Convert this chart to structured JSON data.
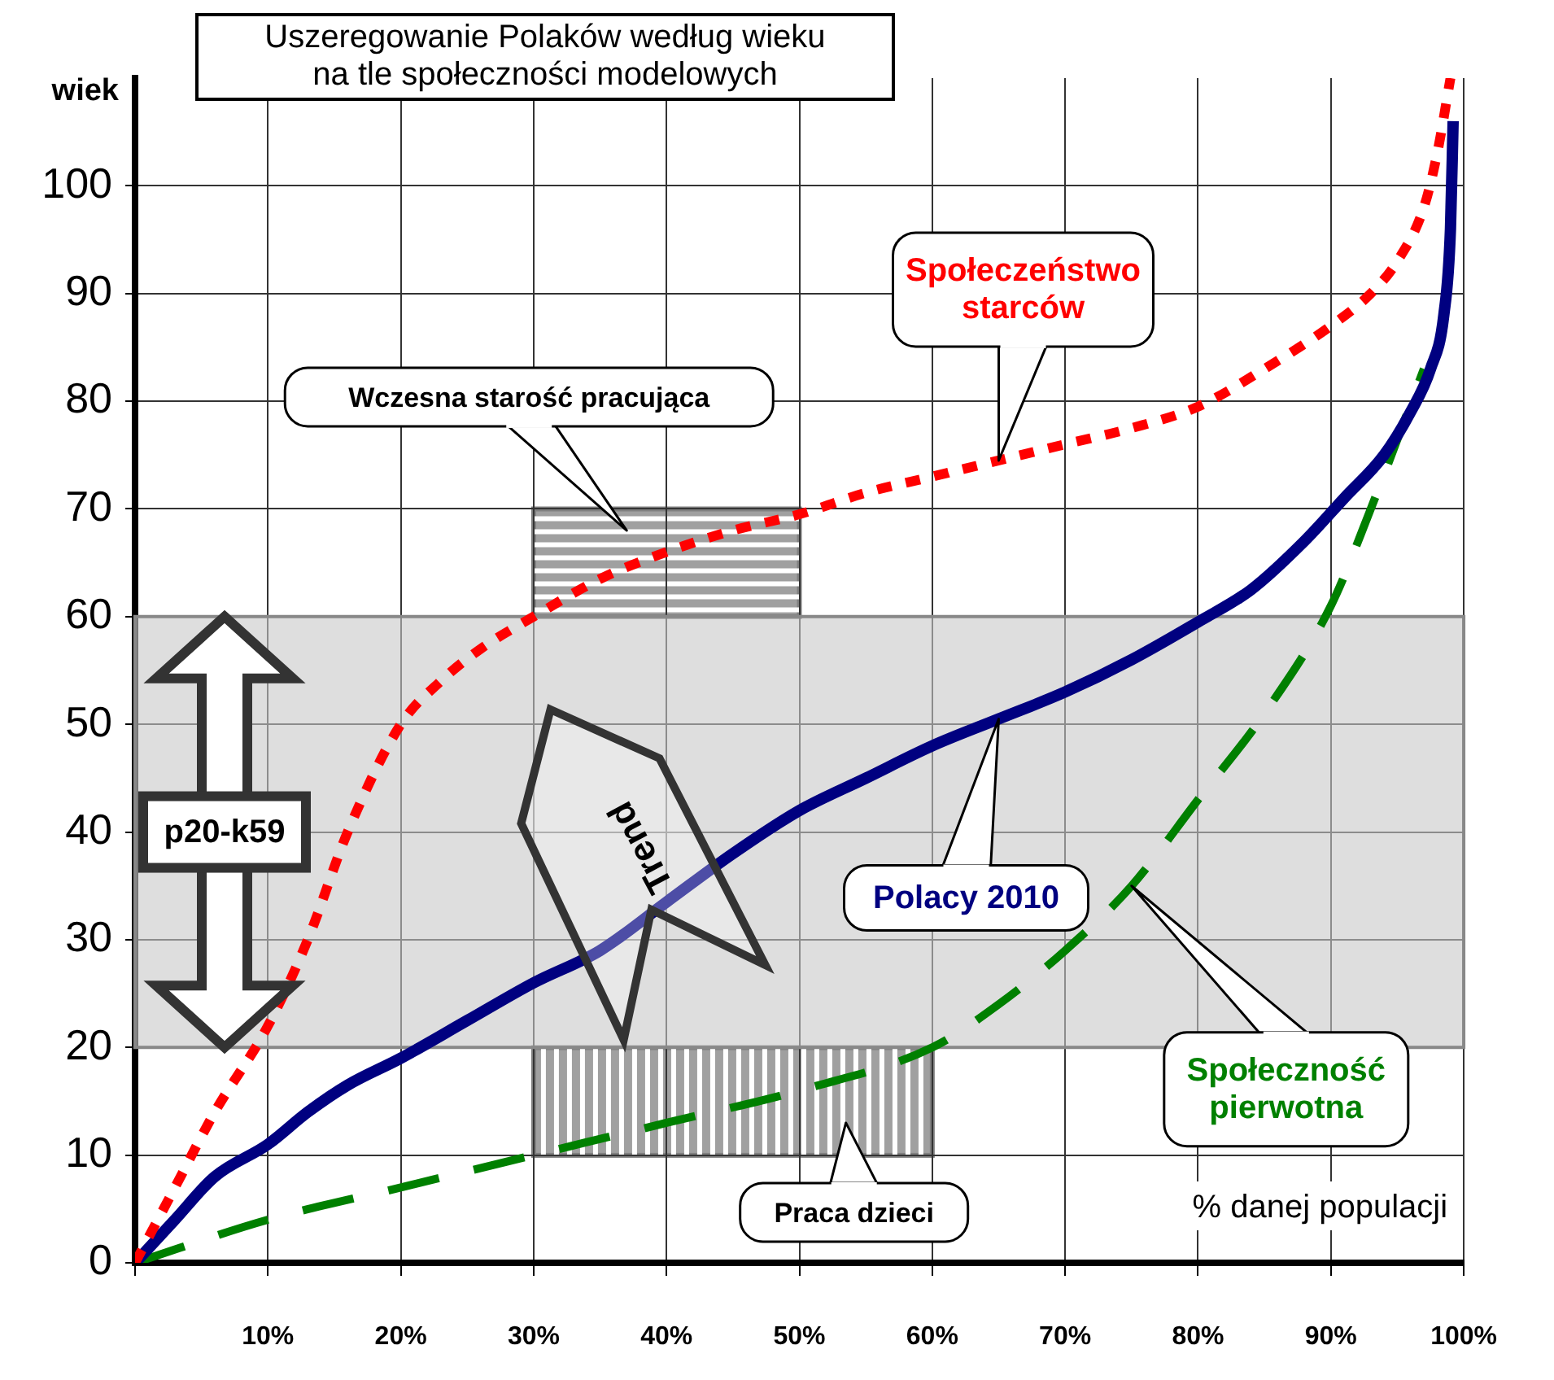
{
  "chart_data": {
    "type": "line",
    "title": "Uszeregowanie Polaków według wieku na tle społeczności modelowych",
    "xlabel": "% danej populacji",
    "ylabel": "wiek",
    "xlim": [
      0,
      100
    ],
    "ylim": [
      0,
      110
    ],
    "xticks": [
      {
        "value": 0,
        "label": null
      },
      {
        "value": 10,
        "label": "10%"
      },
      {
        "value": 20,
        "label": "20%"
      },
      {
        "value": 30,
        "label": "30%"
      },
      {
        "value": 40,
        "label": "40%"
      },
      {
        "value": 50,
        "label": "50%"
      },
      {
        "value": 60,
        "label": "60%"
      },
      {
        "value": 70,
        "label": "70%"
      },
      {
        "value": 80,
        "label": "80%"
      },
      {
        "value": 90,
        "label": "90%"
      },
      {
        "value": 100,
        "label": "100%"
      }
    ],
    "yticks": [
      0,
      10,
      20,
      30,
      40,
      50,
      60,
      70,
      80,
      90,
      100
    ],
    "grid": true,
    "legend": false,
    "marker": "none",
    "series": [
      {
        "name": "Społeczeństwo starców",
        "color": "#ff0000",
        "line_style": "dotted",
        "x": [
          0,
          3,
          6,
          10,
          13,
          16,
          20,
          23,
          26,
          30,
          35,
          40,
          45,
          50,
          55,
          60,
          65,
          70,
          75,
          80,
          85,
          90,
          93,
          95,
          97,
          98,
          99
        ],
        "values": [
          0,
          7,
          14,
          22,
          30,
          40,
          50,
          54,
          57,
          60,
          63.5,
          66,
          68,
          69.5,
          71.5,
          73,
          74.5,
          76,
          77.5,
          79.5,
          83,
          87,
          90,
          93,
          98,
          103,
          110
        ]
      },
      {
        "name": "Polacy 2010",
        "color": "#000080",
        "line_style": "solid",
        "x": [
          0,
          3,
          6,
          10,
          13,
          16,
          20,
          25,
          30,
          35,
          40,
          45,
          50,
          55,
          60,
          65,
          70,
          75,
          80,
          84,
          88,
          91,
          94,
          96,
          97.5,
          98.5,
          99,
          99.2
        ],
        "values": [
          0,
          4,
          8,
          11,
          14,
          16.5,
          19,
          22.5,
          26,
          29,
          33.5,
          38,
          42,
          45,
          48,
          50.5,
          53,
          56,
          59.5,
          62.5,
          67,
          71,
          75,
          79,
          83,
          88,
          96,
          106
        ]
      },
      {
        "name": "Społeczność pierwotna",
        "color": "#008000",
        "line_style": "dashed",
        "x": [
          0,
          10,
          20,
          30,
          40,
          50,
          60,
          65,
          70,
          75,
          80,
          85,
          90,
          93,
          97
        ],
        "values": [
          0,
          4,
          7,
          10,
          13,
          16,
          20,
          24,
          29,
          35,
          43,
          51,
          61,
          70,
          83
        ]
      }
    ],
    "bands": [
      {
        "axis": "y",
        "from": 20,
        "to": 60,
        "label": "p20-k59",
        "color": "#c8c8c8"
      }
    ],
    "annotations": [
      "Wczesna starość pracująca",
      "Praca dzieci",
      "Trend"
    ]
  }
}
